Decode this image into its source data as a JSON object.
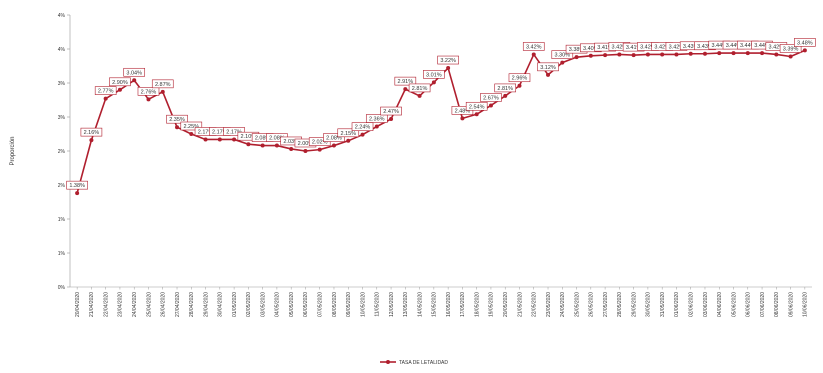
{
  "chart_data": {
    "type": "line",
    "title": "",
    "xlabel": "",
    "ylabel": "Proporción",
    "ylim": [
      0,
      4
    ],
    "y_ticks": [
      "0%",
      "1%",
      "1%",
      "2%",
      "2%",
      "3%",
      "3%",
      "4%",
      "4%"
    ],
    "grid": false,
    "legend_position": "bottom",
    "series_color": "#b01f2e",
    "categories": [
      "20/04/2020",
      "21/04/2020",
      "22/04/2020",
      "23/04/2020",
      "24/04/2020",
      "25/04/2020",
      "26/04/2020",
      "27/04/2020",
      "28/04/2020",
      "29/04/2020",
      "30/04/2020",
      "01/05/2020",
      "02/05/2020",
      "03/05/2020",
      "04/05/2020",
      "05/05/2020",
      "06/05/2020",
      "07/05/2020",
      "08/05/2020",
      "09/05/2020",
      "10/05/2020",
      "11/05/2020",
      "12/05/2020",
      "13/05/2020",
      "14/05/2020",
      "15/05/2020",
      "16/05/2020",
      "17/05/2020",
      "18/05/2020",
      "19/05/2020",
      "20/05/2020",
      "21/05/2020",
      "22/05/2020",
      "23/05/2020",
      "24/05/2020",
      "25/05/2020",
      "26/05/2020",
      "27/05/2020",
      "28/05/2020",
      "29/05/2020",
      "30/05/2020",
      "31/05/2020",
      "01/06/2020",
      "02/06/2020",
      "03/06/2020",
      "04/06/2020",
      "05/06/2020",
      "06/06/2020",
      "07/06/2020",
      "08/06/2020",
      "09/06/2020",
      "10/06/2020"
    ],
    "series": [
      {
        "name": "TASA DE LETALIDAD",
        "values": [
          1.38,
          2.16,
          2.77,
          2.9,
          3.04,
          2.76,
          2.87,
          2.35,
          2.25,
          2.17,
          2.17,
          2.17,
          2.1,
          2.08,
          2.08,
          2.03,
          2.0,
          2.02,
          2.08,
          2.15,
          2.24,
          2.36,
          2.47,
          2.91,
          2.81,
          3.01,
          3.22,
          2.48,
          2.54,
          2.67,
          2.81,
          2.96,
          3.42,
          3.12,
          3.3,
          3.38,
          3.4,
          3.41,
          3.42,
          3.41,
          3.42,
          3.42,
          3.42,
          3.43,
          3.43,
          3.44,
          3.44,
          3.44,
          3.44,
          3.42,
          3.39,
          3.48
        ],
        "labels": [
          "1.38%",
          "2.16%",
          "2.77%",
          "2.90%",
          "3.04%",
          "2.76%",
          "2.87%",
          "2.35%",
          "2.25%",
          "2.17%",
          "2.17%",
          "2.17%",
          "2.10%",
          "2.08%",
          "2.08%",
          "2.03%",
          "2.00%",
          "2.02%",
          "2.08%",
          "2.15%",
          "2.24%",
          "2.36%",
          "2.47%",
          "2.91%",
          "2.81%",
          "3.01%",
          "3.22%",
          "2.48%",
          "2.54%",
          "2.67%",
          "2.81%",
          "2.96%",
          "3.42%",
          "3.12%",
          "3.30%",
          "3.38%",
          "3.40%",
          "3.41%",
          "3.42%",
          "3.41%",
          "3.42%",
          "3.42%",
          "3.42%",
          "3.43%",
          "3.43%",
          "3.44%",
          "3.44%",
          "3.44%",
          "3.44%",
          "3.42%",
          "3.39%",
          "3.48%"
        ]
      }
    ]
  }
}
